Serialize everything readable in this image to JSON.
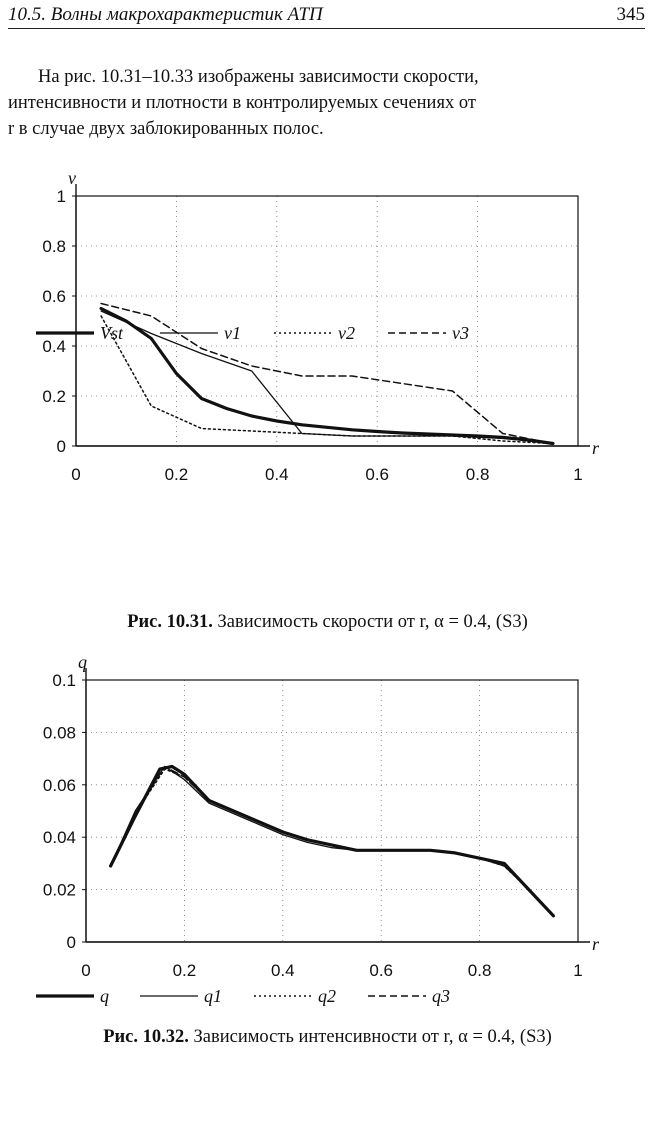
{
  "header": {
    "section_title": "10.5. Волны макрохарактеристик АТП",
    "page_number": "345"
  },
  "paragraph": {
    "lines": [
      "На рис. 10.31–10.33 изображены зависимости скорости,",
      "интенсивности и плотности в контролируемых сечениях от",
      "r в случае двух заблокированных полос."
    ]
  },
  "figures": [
    {
      "caption_label": "Рис. 10.31.",
      "caption_text": "Зависимость скорости от r, α = 0.4, (S3)"
    },
    {
      "caption_label": "Рис. 10.32.",
      "caption_text": "Зависимость интенсивности от r, α = 0.4, (S3)"
    }
  ],
  "chart_data": [
    {
      "type": "line",
      "ylabel": "v",
      "xlabel": "r",
      "xlim": [
        0,
        1
      ],
      "ylim": [
        0,
        1
      ],
      "x_ticks": [
        "0",
        "0.2",
        "0.4",
        "0.6",
        "0.8",
        "1"
      ],
      "y_ticks": [
        "0",
        "0.2",
        "0.4",
        "0.6",
        "0.8",
        "1"
      ],
      "grid": "dotted",
      "legend_position": "bottom",
      "series": [
        {
          "name": "Vst",
          "style": "solid-thick",
          "x": [
            0.05,
            0.1,
            0.15,
            0.2,
            0.25,
            0.3,
            0.35,
            0.4,
            0.45,
            0.5,
            0.55,
            0.6,
            0.65,
            0.7,
            0.75,
            0.8,
            0.85,
            0.9,
            0.95
          ],
          "y": [
            0.55,
            0.5,
            0.43,
            0.29,
            0.19,
            0.15,
            0.12,
            0.1,
            0.085,
            0.075,
            0.065,
            0.058,
            0.052,
            0.048,
            0.044,
            0.04,
            0.035,
            0.025,
            0.01
          ]
        },
        {
          "name": "v1",
          "style": "solid-thin",
          "x": [
            0.05,
            0.15,
            0.25,
            0.35,
            0.45,
            0.55,
            0.65,
            0.75,
            0.85,
            0.95
          ],
          "y": [
            0.54,
            0.45,
            0.37,
            0.3,
            0.05,
            0.04,
            0.04,
            0.04,
            0.03,
            0.01
          ]
        },
        {
          "name": "v2",
          "style": "dotted",
          "x": [
            0.05,
            0.15,
            0.25,
            0.35,
            0.45,
            0.55,
            0.65,
            0.75,
            0.85,
            0.95
          ],
          "y": [
            0.52,
            0.16,
            0.07,
            0.06,
            0.05,
            0.04,
            0.04,
            0.04,
            0.02,
            0.01
          ]
        },
        {
          "name": "v3",
          "style": "dashed",
          "x": [
            0.05,
            0.15,
            0.25,
            0.35,
            0.45,
            0.55,
            0.65,
            0.75,
            0.85,
            0.95
          ],
          "y": [
            0.57,
            0.52,
            0.39,
            0.32,
            0.28,
            0.28,
            0.25,
            0.22,
            0.05,
            0.01
          ]
        }
      ]
    },
    {
      "type": "line",
      "ylabel": "q",
      "xlabel": "r",
      "xlim": [
        0,
        1
      ],
      "ylim": [
        0,
        0.1
      ],
      "x_ticks": [
        "0",
        "0.2",
        "0.4",
        "0.6",
        "0.8",
        "1"
      ],
      "y_ticks": [
        "0",
        "0.02",
        "0.04",
        "0.06",
        "0.08",
        "0.1"
      ],
      "grid": "dotted",
      "legend_position": "bottom",
      "series": [
        {
          "name": "q",
          "style": "solid-thick",
          "x": [
            0.05,
            0.1,
            0.15,
            0.175,
            0.2,
            0.25,
            0.3,
            0.35,
            0.4,
            0.45,
            0.5,
            0.55,
            0.6,
            0.65,
            0.7,
            0.75,
            0.8,
            0.85,
            0.9,
            0.95
          ],
          "y": [
            0.029,
            0.048,
            0.066,
            0.067,
            0.064,
            0.054,
            0.05,
            0.046,
            0.042,
            0.039,
            0.037,
            0.035,
            0.035,
            0.035,
            0.035,
            0.034,
            0.032,
            0.03,
            0.02,
            0.01
          ]
        },
        {
          "name": "q1",
          "style": "solid-thin",
          "x": [
            0.05,
            0.1,
            0.16,
            0.2,
            0.25,
            0.3,
            0.35,
            0.4,
            0.45,
            0.5,
            0.55,
            0.6,
            0.65,
            0.7,
            0.75,
            0.8,
            0.85,
            0.9,
            0.95
          ],
          "y": [
            0.029,
            0.05,
            0.067,
            0.062,
            0.053,
            0.049,
            0.045,
            0.041,
            0.038,
            0.036,
            0.035,
            0.035,
            0.035,
            0.035,
            0.034,
            0.032,
            0.029,
            0.02,
            0.01
          ]
        },
        {
          "name": "q2",
          "style": "dotted",
          "x": [
            0.05,
            0.1,
            0.16,
            0.2,
            0.25,
            0.3,
            0.35,
            0.4,
            0.45,
            0.5,
            0.55,
            0.6,
            0.65,
            0.7,
            0.75,
            0.8,
            0.85,
            0.9,
            0.95
          ],
          "y": [
            0.029,
            0.049,
            0.066,
            0.063,
            0.054,
            0.05,
            0.046,
            0.042,
            0.039,
            0.037,
            0.035,
            0.035,
            0.035,
            0.035,
            0.034,
            0.032,
            0.029,
            0.02,
            0.01
          ]
        },
        {
          "name": "q3",
          "style": "dashed",
          "x": [
            0.05,
            0.1,
            0.16,
            0.2,
            0.25,
            0.3,
            0.35,
            0.4,
            0.45,
            0.5,
            0.55,
            0.6,
            0.65,
            0.7,
            0.75,
            0.8,
            0.85,
            0.9,
            0.95
          ],
          "y": [
            0.029,
            0.049,
            0.067,
            0.063,
            0.054,
            0.05,
            0.046,
            0.042,
            0.039,
            0.037,
            0.035,
            0.035,
            0.035,
            0.035,
            0.034,
            0.032,
            0.03,
            0.02,
            0.01
          ]
        }
      ]
    }
  ]
}
